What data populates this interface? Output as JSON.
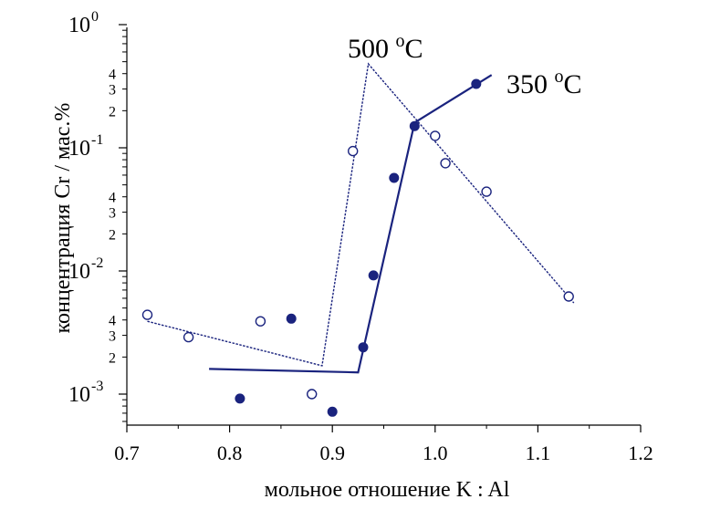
{
  "chart_data": {
    "type": "scatter",
    "xlabel": "мольное отношение K : Al",
    "ylabel": "концентрация Cr / мас.%",
    "xlim": [
      0.7,
      1.2
    ],
    "ylim": [
      0.0005,
      1.0
    ],
    "yscale": "log",
    "grid": false,
    "x_ticks": [
      "0.7",
      "0.8",
      "0.9",
      "1.0",
      "1.1",
      "1.2"
    ],
    "y_major_ticks": [
      {
        "value": 0.001,
        "base": "10",
        "exp": "-3"
      },
      {
        "value": 0.01,
        "base": "10",
        "exp": "-2"
      },
      {
        "value": 0.1,
        "base": "10",
        "exp": "-1"
      },
      {
        "value": 1.0,
        "base": "10",
        "exp": "0"
      }
    ],
    "y_minor_ticks": [
      {
        "value": 0.002,
        "label": "2"
      },
      {
        "value": 0.003,
        "label": "3"
      },
      {
        "value": 0.004,
        "label": "4"
      },
      {
        "value": 0.02,
        "label": "2"
      },
      {
        "value": 0.03,
        "label": "3"
      },
      {
        "value": 0.04,
        "label": "4"
      },
      {
        "value": 0.2,
        "label": "2"
      },
      {
        "value": 0.3,
        "label": "3"
      },
      {
        "value": 0.4,
        "label": "4"
      }
    ],
    "series": [
      {
        "label": "500 °C",
        "label_main": "500 ",
        "label_sup": "o",
        "label_unit": "C",
        "marker": "open-circle",
        "color": "#1a237e",
        "points": [
          {
            "x": 0.72,
            "y": 0.0044
          },
          {
            "x": 0.76,
            "y": 0.0029
          },
          {
            "x": 0.83,
            "y": 0.0039
          },
          {
            "x": 0.88,
            "y": 0.001
          },
          {
            "x": 0.92,
            "y": 0.094
          },
          {
            "x": 1.0,
            "y": 0.125
          },
          {
            "x": 1.01,
            "y": 0.075
          },
          {
            "x": 1.05,
            "y": 0.044
          },
          {
            "x": 1.13,
            "y": 0.0062
          }
        ],
        "fit_line": [
          {
            "x": 0.72,
            "y": 0.0039
          },
          {
            "x": 0.89,
            "y": 0.0017
          },
          {
            "x": 0.935,
            "y": 0.48
          },
          {
            "x": 1.135,
            "y": 0.0055
          }
        ]
      },
      {
        "label": "350 °C",
        "label_main": "350 ",
        "label_sup": "o",
        "label_unit": "C",
        "marker": "filled-circle",
        "color": "#1a237e",
        "points": [
          {
            "x": 0.81,
            "y": 0.00092
          },
          {
            "x": 0.86,
            "y": 0.0041
          },
          {
            "x": 0.9,
            "y": 0.00072
          },
          {
            "x": 0.93,
            "y": 0.0024
          },
          {
            "x": 0.94,
            "y": 0.0092
          },
          {
            "x": 0.96,
            "y": 0.057
          },
          {
            "x": 0.98,
            "y": 0.15
          },
          {
            "x": 1.04,
            "y": 0.33
          }
        ],
        "fit_line": [
          {
            "x": 0.78,
            "y": 0.0016
          },
          {
            "x": 0.925,
            "y": 0.0015
          },
          {
            "x": 0.98,
            "y": 0.16
          },
          {
            "x": 1.055,
            "y": 0.39
          }
        ]
      }
    ]
  }
}
